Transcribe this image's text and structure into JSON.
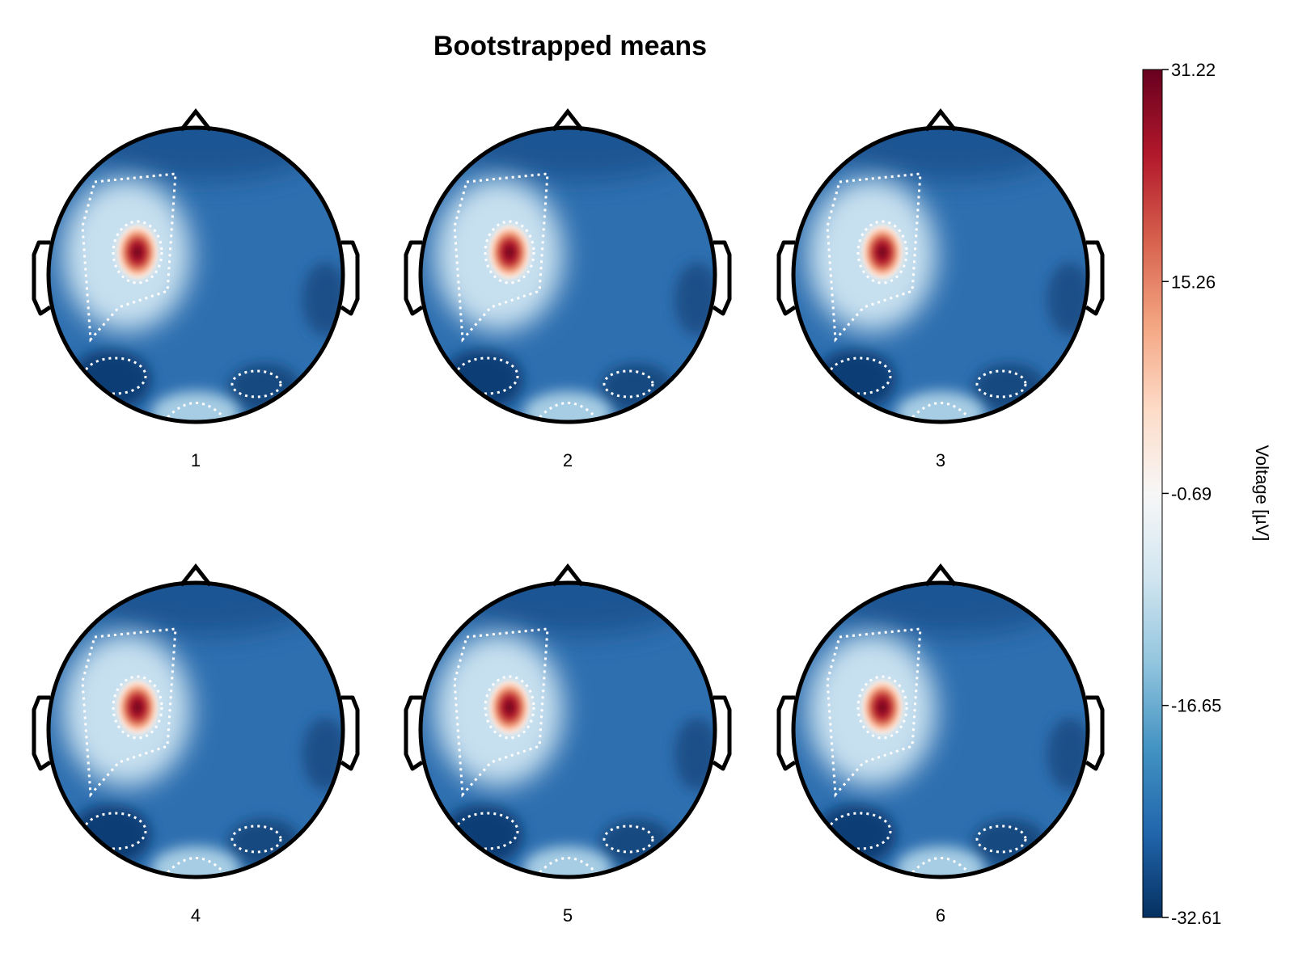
{
  "chart_data": {
    "type": "heatmap",
    "subtype": "topoplot-grid",
    "title": "Bootstrapped means",
    "panels": [
      {
        "label": "1"
      },
      {
        "label": "2"
      },
      {
        "label": "3"
      },
      {
        "label": "4"
      },
      {
        "label": "5"
      },
      {
        "label": "6"
      }
    ],
    "colorbar": {
      "label": "Voltage [µV]",
      "min": -32.61,
      "max": 31.22,
      "ticks": [
        -32.61,
        -16.65,
        -0.69,
        15.26,
        31.22
      ],
      "tick_labels": [
        "-32.61",
        "-16.65",
        "-0.69",
        "15.26",
        "31.22"
      ],
      "colormap": [
        "#053061",
        "#2166ac",
        "#4393c3",
        "#92c5de",
        "#d1e5f0",
        "#f7f7f7",
        "#fddbc7",
        "#f4a582",
        "#d6604d",
        "#b2182b",
        "#67001f"
      ]
    },
    "colors": {
      "background": "#2e6fb0",
      "contour": "#ffffff",
      "outline": "#000000"
    }
  }
}
